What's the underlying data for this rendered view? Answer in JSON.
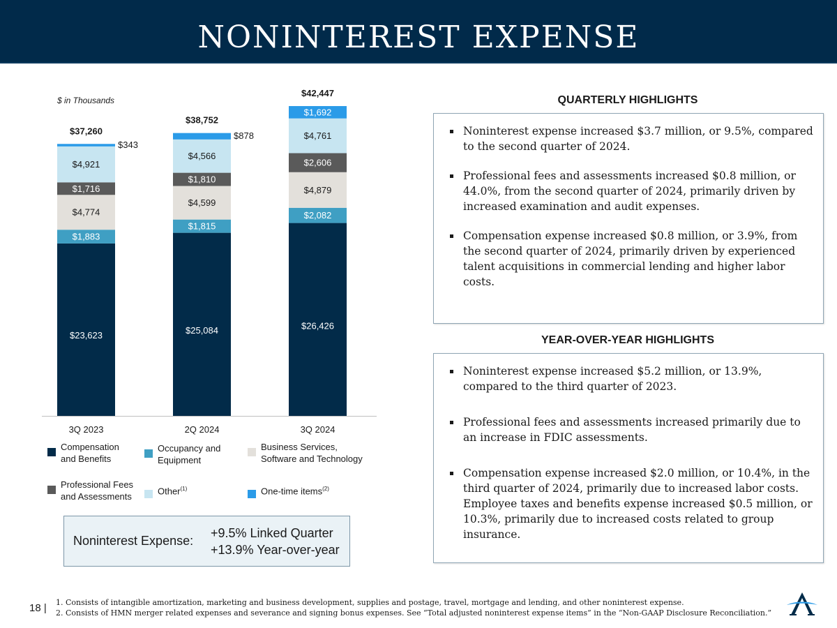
{
  "header": {
    "title": "NONINTEREST EXPENSE"
  },
  "units_note": "$ in Thousands",
  "chart_data": {
    "type": "bar",
    "stacked": true,
    "categories": [
      "3Q 2023",
      "2Q 2024",
      "3Q 2024"
    ],
    "totals": [
      "$37,260",
      "$38,752",
      "$42,447"
    ],
    "total_values": [
      37260,
      38752,
      42447
    ],
    "series": [
      {
        "name": "Compensation and Benefits",
        "color": "#022b49",
        "values": [
          23623,
          25084,
          26426
        ],
        "labels": [
          "$23,623",
          "$25,084",
          "$26,426"
        ],
        "label_color": "#ffffff"
      },
      {
        "name": "Occupancy and Equipment",
        "color": "#3f9fc3",
        "values": [
          1883,
          1815,
          2082
        ],
        "labels": [
          "$1,883",
          "$1,815",
          "$2,082"
        ],
        "label_color": "#ffffff"
      },
      {
        "name": "Business Services, Software and Technology",
        "color": "#e3e0db",
        "values": [
          4774,
          4599,
          4879
        ],
        "labels": [
          "$4,774",
          "$4,599",
          "$4,879"
        ],
        "label_color": "#1a1a1a"
      },
      {
        "name": "Professional Fees and Assessments",
        "color": "#5a5a5a",
        "values": [
          1716,
          1810,
          2606
        ],
        "labels": [
          "$1,716",
          "$1,810",
          "$2,606"
        ],
        "label_color": "#ffffff"
      },
      {
        "name": "Other",
        "color": "#c7e5f1",
        "values": [
          4921,
          4566,
          4761
        ],
        "labels": [
          "$4,921",
          "$4,566",
          "$4,761"
        ],
        "label_color": "#1a1a1a"
      },
      {
        "name": "One-time items",
        "color": "#2b9be8",
        "values": [
          343,
          878,
          1692
        ],
        "labels": [
          "$343",
          "$878",
          "$1,692"
        ],
        "label_color": "#ffffff",
        "outside_labels": [
          true,
          true,
          false
        ]
      }
    ],
    "ylim": [
      0,
      42447
    ]
  },
  "legend": [
    {
      "label": "Compensation\nand Benefits",
      "sup": "",
      "color": "#022b49"
    },
    {
      "label": "Occupancy and\nEquipment",
      "sup": "",
      "color": "#3f9fc3"
    },
    {
      "label": "Business Services,\nSoftware and Technology",
      "sup": "",
      "color": "#e3e0db"
    },
    {
      "label": "Professional Fees\nand Assessments",
      "sup": "",
      "color": "#5a5a5a"
    },
    {
      "label": "Other",
      "sup": "(1)",
      "color": "#c7e5f1"
    },
    {
      "label": "One-time items",
      "sup": "(2)",
      "color": "#2b9be8"
    }
  ],
  "summary": {
    "label": "Noninterest Expense:",
    "linked_quarter": "+9.5% Linked Quarter",
    "year_over_year": "+13.9% Year-over-year"
  },
  "quarterly": {
    "heading": "QUARTERLY HIGHLIGHTS",
    "bullets": [
      "Noninterest expense increased $3.7 million, or 9.5%, compared to the second quarter of 2024.",
      "Professional fees and assessments increased $0.8 million, or 44.0%, from the second quarter of 2024, primarily driven by increased examination and audit expenses.",
      "Compensation expense increased $0.8 million, or 3.9%, from the second quarter of 2024, primarily driven by experienced talent acquisitions in commercial lending and higher labor costs."
    ]
  },
  "yoy": {
    "heading": "YEAR-OVER-YEAR HIGHLIGHTS",
    "bullets": [
      "Noninterest expense increased $5.2 million, or 13.9%, compared to the third quarter of 2023.",
      "Professional fees and assessments increased primarily due to an increase in FDIC assessments.",
      "Compensation expense increased $2.0 million, or 10.4%, in the third quarter of 2024, primarily due to increased labor costs. Employee taxes and benefits expense increased $0.5 million, or 10.3%, primarily due to increased costs related to group insurance."
    ]
  },
  "footer": {
    "page_number": "18 |",
    "footnote_1": "1. Consists of intangible amortization, marketing and business development, supplies and postage, travel, mortgage and lending, and other noninterest expense.",
    "footnote_2": "2. Consists of HMN merger related expenses and severance and signing bonus expenses. See “Total adjusted noninterest expense items” in the “Non-GAAP Disclosure Reconciliation.”"
  },
  "colors": {
    "brand_navy": "#012a4a",
    "accent": "#2b9be8"
  },
  "icons": {
    "logo": "a-lettermark-logo"
  }
}
